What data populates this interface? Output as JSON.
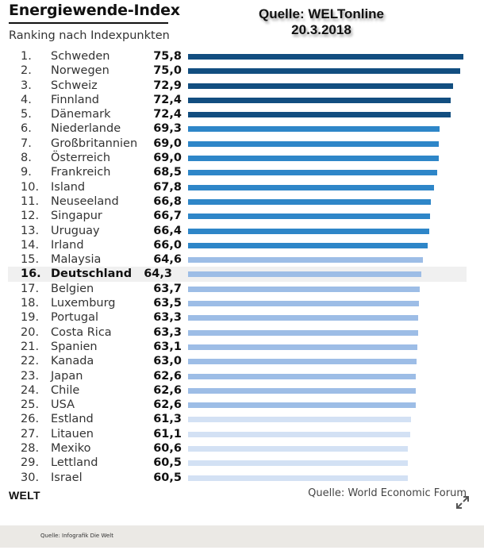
{
  "header": {
    "title": "Energiewende-Index",
    "subtitle": "Ranking nach Indexpunkten",
    "stamp_line1": "Quelle: WELTonline",
    "stamp_line2": "20.3.2018"
  },
  "colors": {
    "top": "#124e80",
    "mid": "#2e86c8",
    "low": "#9dbde6",
    "lowest": "#d3e1f4",
    "highlight_row": "#f0f0f0"
  },
  "chart_data": {
    "type": "bar",
    "orientation": "horizontal",
    "title": "Energiewende-Index",
    "subtitle": "Ranking nach Indexpunkten",
    "xlabel": "",
    "ylabel": "",
    "xlim": [
      0,
      75.8
    ],
    "grid": false,
    "highlight": "Deutschland",
    "ranks": [
      "1.",
      "2.",
      "3.",
      "4.",
      "5.",
      "6.",
      "7.",
      "8.",
      "9.",
      "10.",
      "11.",
      "12.",
      "13.",
      "14.",
      "15.",
      "16.",
      "17.",
      "18.",
      "19.",
      "20.",
      "21.",
      "22.",
      "23.",
      "24.",
      "25.",
      "26.",
      "27.",
      "28.",
      "29.",
      "30."
    ],
    "categories": [
      "Schweden",
      "Norwegen",
      "Schweiz",
      "Finnland",
      "Dänemark",
      "Niederlande",
      "Großbritannien",
      "Österreich",
      "Frankreich",
      "Island",
      "Neuseeland",
      "Singapur",
      "Uruguay",
      "Irland",
      "Malaysia",
      "Deutschland",
      "Belgien",
      "Luxemburg",
      "Portugal",
      "Costa Rica",
      "Spanien",
      "Kanada",
      "Japan",
      "Chile",
      "USA",
      "Estland",
      "Litauen",
      "Mexiko",
      "Lettland",
      "Israel"
    ],
    "values": [
      75.8,
      75.0,
      72.9,
      72.4,
      72.4,
      69.3,
      69.0,
      69.0,
      68.5,
      67.8,
      66.8,
      66.7,
      66.4,
      66.0,
      64.6,
      64.3,
      63.7,
      63.5,
      63.3,
      63.3,
      63.1,
      63.0,
      62.6,
      62.6,
      62.6,
      61.3,
      61.1,
      60.6,
      60.5,
      60.5
    ],
    "value_labels": [
      "75,8",
      "75,0",
      "72,9",
      "72,4",
      "72,4",
      "69,3",
      "69,0",
      "69,0",
      "68,5",
      "67,8",
      "66,8",
      "66,7",
      "66,4",
      "66,0",
      "64,6",
      "64,3",
      "63,7",
      "63,5",
      "63,3",
      "63,3",
      "63,1",
      "63,0",
      "62,6",
      "62,6",
      "62,6",
      "61,3",
      "61,1",
      "60,6",
      "60,5",
      "60,5"
    ],
    "color_groups": [
      "top",
      "top",
      "top",
      "top",
      "top",
      "mid",
      "mid",
      "mid",
      "mid",
      "mid",
      "mid",
      "mid",
      "mid",
      "mid",
      "low",
      "low",
      "low",
      "low",
      "low",
      "low",
      "low",
      "low",
      "low",
      "low",
      "low",
      "lowest",
      "lowest",
      "lowest",
      "lowest",
      "lowest"
    ]
  },
  "footer": {
    "brand": "WELT",
    "source": "Quelle: World Economic Forum",
    "expand_icon": "expand-arrows-icon",
    "credit": "Quelle: Infografik Die Welt"
  }
}
